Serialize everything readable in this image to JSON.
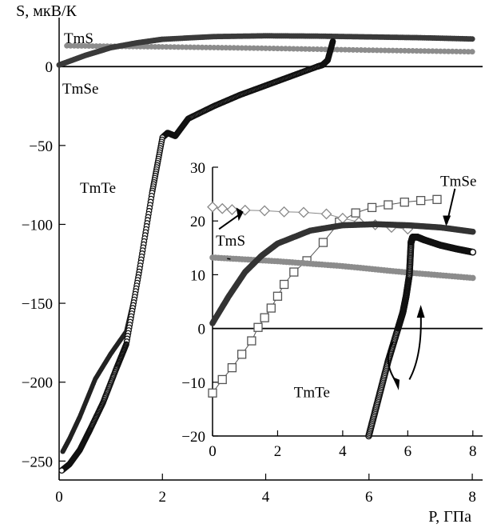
{
  "chart_data": [
    {
      "type": "scatter",
      "ylabel": "S, мкВ/К",
      "xlabel": "P, ГПа",
      "xlim": [
        0,
        8.2
      ],
      "ylim": [
        -262,
        28
      ],
      "x_ticks": [
        "0",
        "2",
        "4",
        "6",
        "8"
      ],
      "y_ticks": [
        "0",
        "−50",
        "−100",
        "−150",
        "−200",
        "−250"
      ],
      "x_tick_values": [
        0,
        2,
        4,
        6,
        8
      ],
      "y_tick_values": [
        0,
        -50,
        -100,
        -150,
        -200,
        -250
      ],
      "labels": [
        "TmS",
        "TmSe",
        "TmTe"
      ],
      "series": [
        {
          "name": "TmS",
          "color": "#8c8c8c",
          "points": [
            [
              0.15,
              13.2
            ],
            [
              2,
              12.5
            ],
            [
              4,
              11.6
            ],
            [
              6,
              10.4
            ],
            [
              8,
              9.4
            ]
          ]
        },
        {
          "name": "TmSe",
          "color": "#3a3a3a",
          "points": [
            [
              0,
              1
            ],
            [
              0.5,
              7
            ],
            [
              1,
              12
            ],
            [
              1.5,
              15
            ],
            [
              2,
              17.3
            ],
            [
              3,
              19
            ],
            [
              4,
              19.5
            ],
            [
              5,
              19.3
            ],
            [
              6,
              18.8
            ],
            [
              7,
              18.3
            ],
            [
              8,
              17.5
            ]
          ]
        },
        {
          "name": "TmTe",
          "color": "#222222",
          "points": [
            [
              5,
              0
            ],
            [
              4.5,
              -6
            ],
            [
              4,
              -12
            ],
            [
              3.5,
              -18
            ],
            [
              3,
              -25
            ],
            [
              2.5,
              -33
            ],
            [
              2.25,
              -44
            ],
            [
              2.1,
              -42
            ],
            [
              2,
              -45
            ],
            [
              1.85,
              -70
            ],
            [
              1.7,
              -100
            ],
            [
              1.5,
              -140
            ],
            [
              1.3,
              -168
            ],
            [
              1,
              -182
            ],
            [
              0.7,
              -198
            ],
            [
              0.4,
              -222
            ],
            [
              0.2,
              -236
            ],
            [
              0.07,
              -244
            ]
          ]
        },
        {
          "name": "TmTe",
          "color": "#111111",
          "points": [
            [
              5.3,
              16
            ],
            [
              5.2,
              4
            ],
            [
              5.1,
              1
            ],
            [
              5,
              0
            ],
            [
              4.5,
              -6
            ],
            [
              4,
              -12
            ],
            [
              3.5,
              -18
            ],
            [
              3,
              -25
            ],
            [
              2.5,
              -33
            ],
            [
              2.25,
              -44
            ],
            [
              2.1,
              -42
            ],
            [
              2,
              -45
            ],
            [
              1.8,
              -80
            ],
            [
              1.55,
              -130
            ],
            [
              1.3,
              -176
            ],
            [
              1.1,
              -192
            ],
            [
              0.85,
              -213
            ],
            [
              0.6,
              -230
            ],
            [
              0.4,
              -243
            ],
            [
              0.2,
              -252
            ],
            [
              0.05,
              -256
            ]
          ]
        }
      ]
    },
    {
      "type": "scatter",
      "xlim": [
        0,
        8.3
      ],
      "ylim": [
        -20,
        30
      ],
      "x_ticks": [
        "0",
        "2",
        "4",
        "6",
        "8"
      ],
      "y_ticks": [
        "30",
        "20",
        "10",
        "0",
        "−10",
        "−20"
      ],
      "x_tick_values": [
        0,
        2,
        4,
        6,
        8
      ],
      "y_tick_values": [
        30,
        20,
        10,
        0,
        -10,
        -20
      ],
      "labels": [
        "TmSe",
        "TmS",
        "TmTe"
      ],
      "series": [
        {
          "name": "TmSe",
          "color": "#555555",
          "marker": "square",
          "points": [
            [
              0,
              -12
            ],
            [
              0.3,
              -9.5
            ],
            [
              0.6,
              -7.3
            ],
            [
              0.9,
              -4.8
            ],
            [
              1.2,
              -2.3
            ],
            [
              1.4,
              0.2
            ],
            [
              1.6,
              2
            ],
            [
              1.8,
              3.8
            ],
            [
              2,
              6
            ],
            [
              2.2,
              8.2
            ],
            [
              2.5,
              10.5
            ],
            [
              2.9,
              12.6
            ],
            [
              3.4,
              16
            ],
            [
              3.9,
              19.8
            ],
            [
              4.4,
              21.5
            ],
            [
              4.9,
              22.5
            ],
            [
              5.4,
              23
            ],
            [
              5.9,
              23.5
            ],
            [
              6.4,
              23.8
            ],
            [
              6.9,
              24
            ]
          ]
        },
        {
          "name": "TmSe",
          "color": "#888888",
          "marker": "diamond",
          "points": [
            [
              0,
              22.6
            ],
            [
              0.3,
              22.3
            ],
            [
              0.6,
              22.1
            ],
            [
              1,
              22
            ],
            [
              1.6,
              21.9
            ],
            [
              2.2,
              21.7
            ],
            [
              2.8,
              21.6
            ],
            [
              3.5,
              21.3
            ],
            [
              4,
              20.5
            ],
            [
              4.5,
              19.8
            ],
            [
              5,
              19.3
            ],
            [
              5.5,
              18.8
            ],
            [
              6,
              18.5
            ]
          ]
        },
        {
          "name": "TmS",
          "color": "#8c8c8c",
          "marker": "dot",
          "points": [
            [
              0,
              13.2
            ],
            [
              2,
              12.5
            ],
            [
              4,
              11.6
            ],
            [
              6,
              10.4
            ],
            [
              8,
              9.4
            ]
          ]
        },
        {
          "name": "TmS",
          "color": "#333333",
          "marker": "dot",
          "points": [
            [
              0,
              1
            ],
            [
              0.5,
              6
            ],
            [
              1,
              10.5
            ],
            [
              1.5,
              13.5
            ],
            [
              2,
              15.8
            ],
            [
              3,
              18.2
            ],
            [
              4,
              19.2
            ],
            [
              5,
              19.4
            ],
            [
              6,
              19.2
            ],
            [
              7,
              18.8
            ],
            [
              8,
              18
            ]
          ]
        },
        {
          "name": "TmTe",
          "color": "#111111",
          "marker": "circle",
          "points": [
            [
              4.8,
              -20
            ],
            [
              5.1,
              -13
            ],
            [
              5.4,
              -6
            ],
            [
              5.7,
              0
            ],
            [
              5.85,
              3
            ],
            [
              5.95,
              6
            ],
            [
              6.05,
              10
            ],
            [
              6.1,
              16
            ],
            [
              6.15,
              17
            ],
            [
              6.3,
              17
            ],
            [
              6.5,
              16.5
            ],
            [
              7,
              15.5
            ],
            [
              7.5,
              14.8
            ],
            [
              8,
              14.2
            ]
          ]
        }
      ]
    }
  ]
}
